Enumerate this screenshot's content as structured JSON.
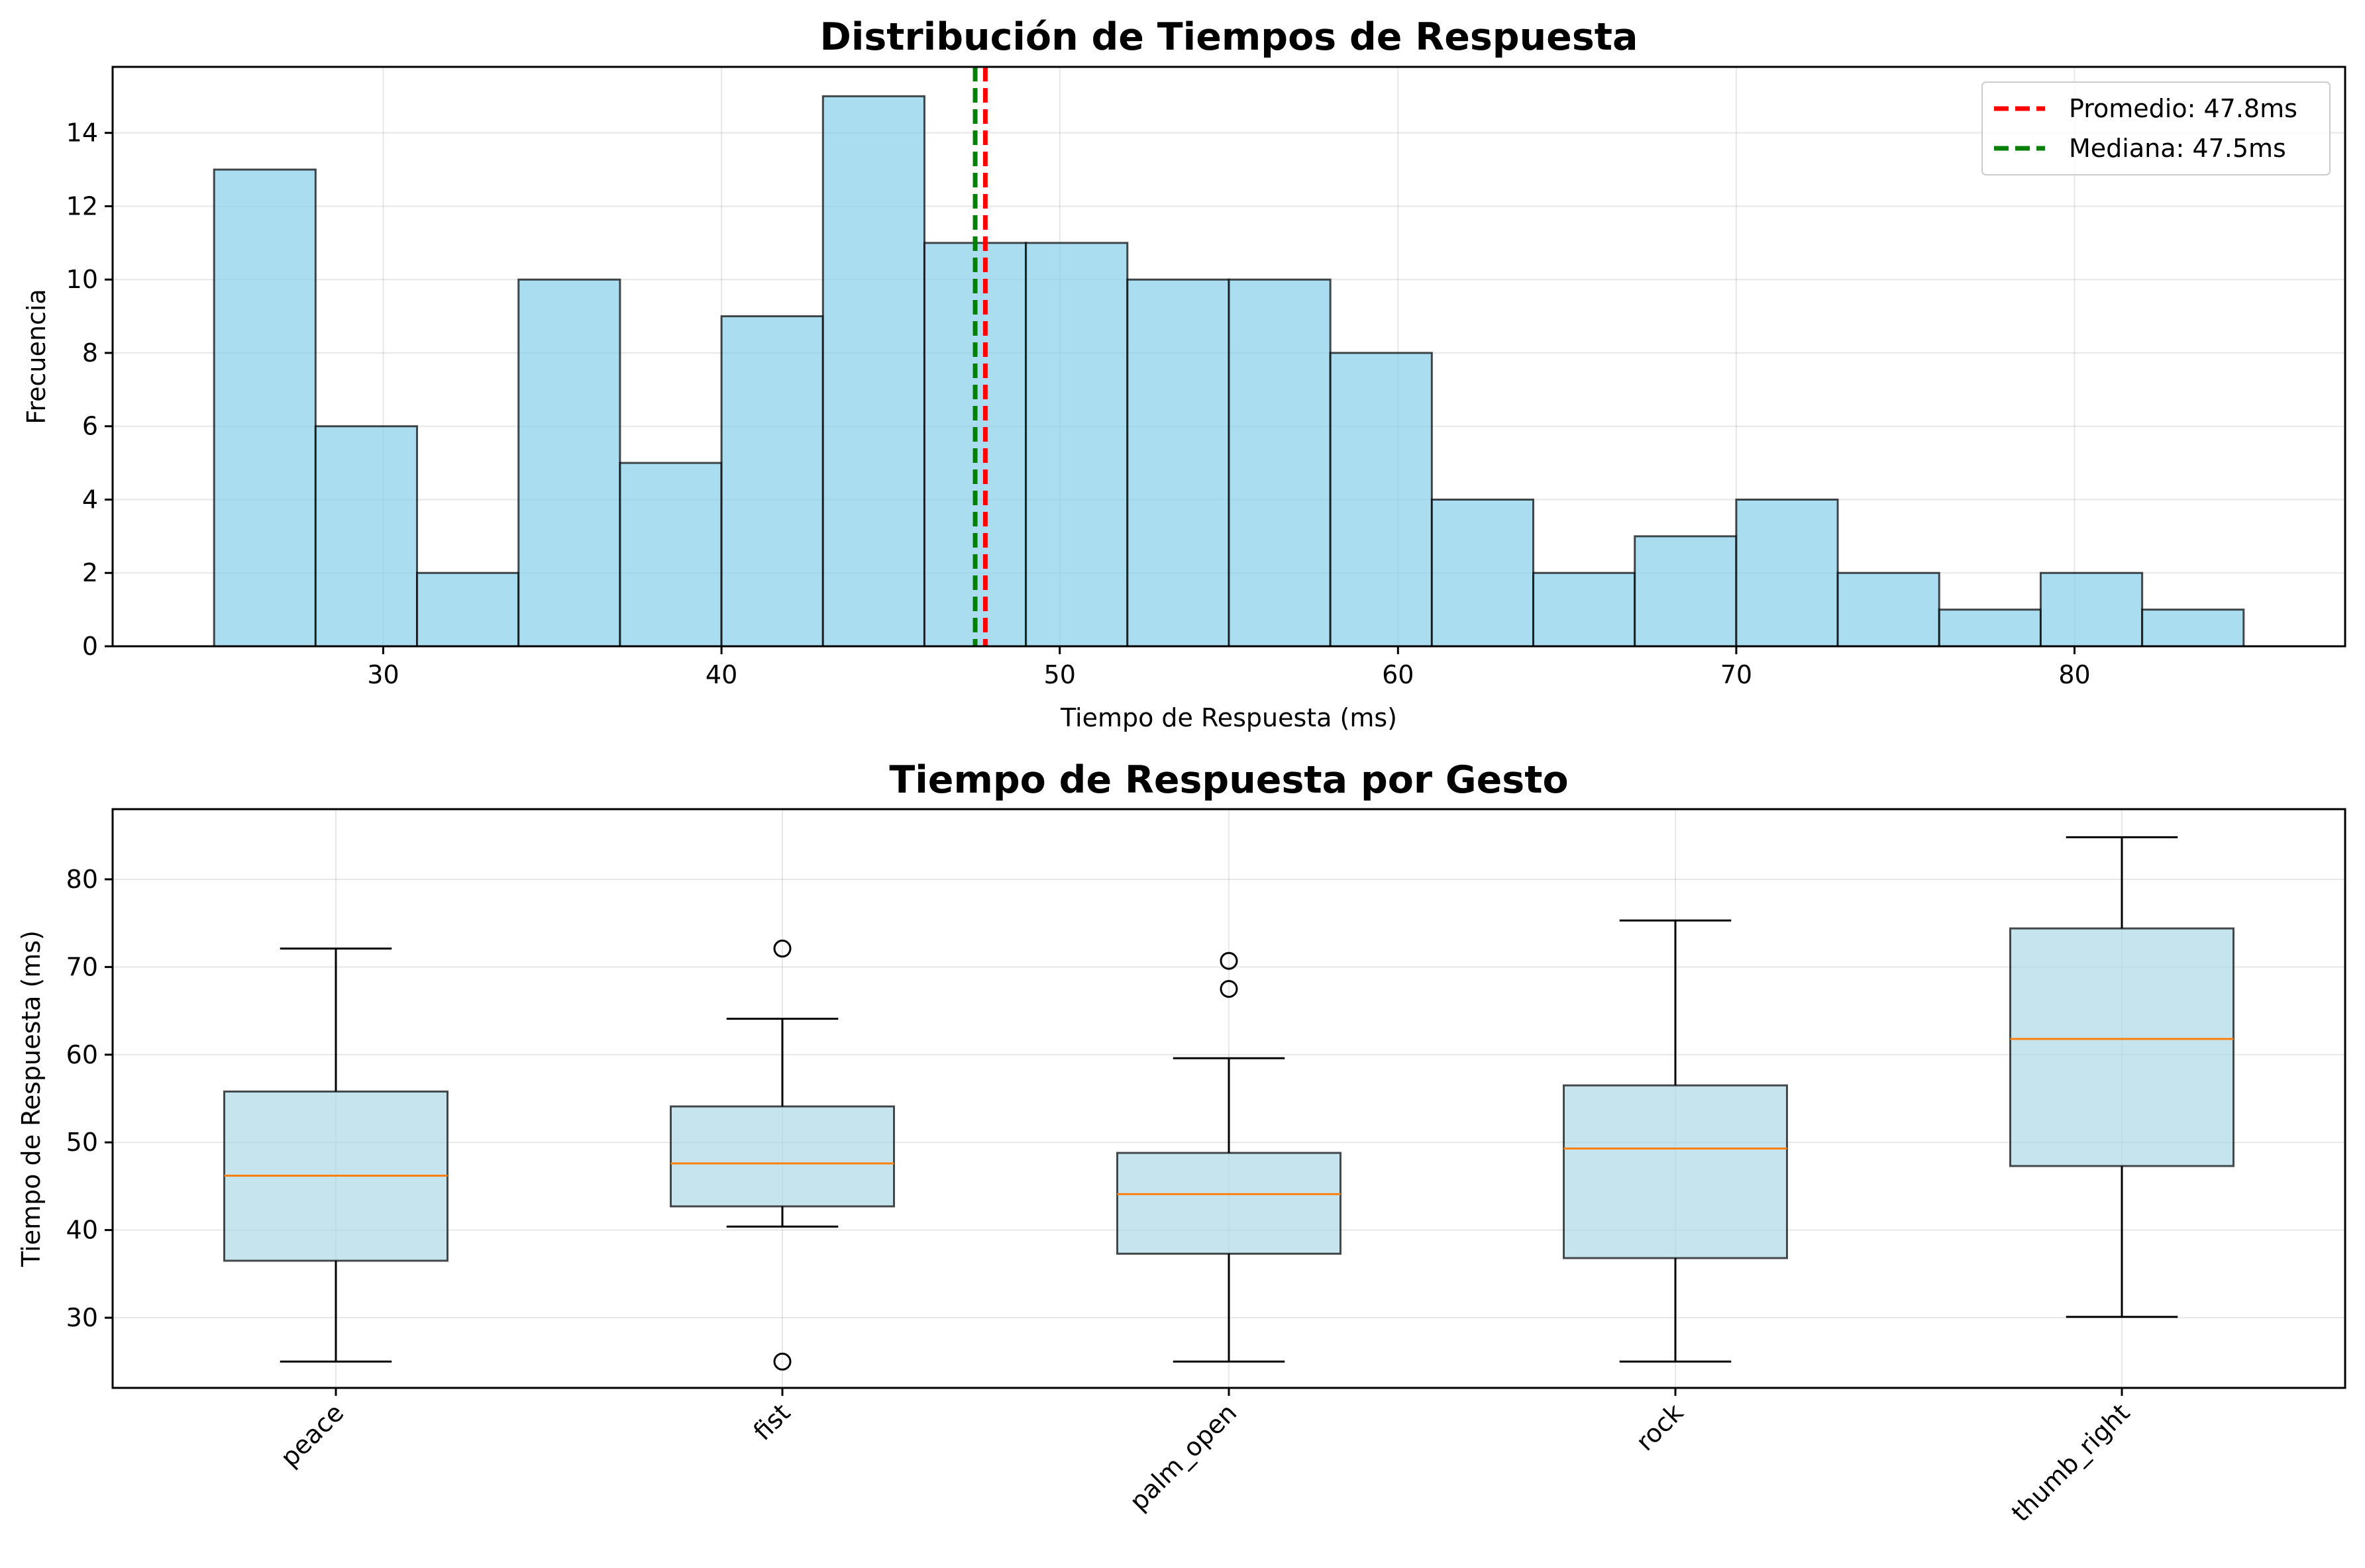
{
  "chart_data": [
    {
      "type": "bar",
      "subtype": "histogram",
      "title": "Distribución de Tiempos de Respuesta",
      "xlabel": "Tiempo de Respuesta (ms)",
      "ylabel": "Frecuencia",
      "xlim": [
        22,
        88
      ],
      "ylim": [
        0,
        15.8
      ],
      "xticks": [
        30,
        40,
        50,
        60,
        70,
        80
      ],
      "yticks": [
        0,
        2,
        4,
        6,
        8,
        10,
        12,
        14
      ],
      "grid": true,
      "bin_edges": [
        25,
        28,
        31,
        34,
        37,
        40,
        43,
        46,
        49,
        52,
        55,
        58,
        61,
        64,
        67,
        70,
        73,
        76,
        79,
        82,
        85
      ],
      "counts": [
        13,
        6,
        2,
        10,
        5,
        9,
        15,
        11,
        11,
        10,
        10,
        8,
        4,
        2,
        3,
        4,
        2,
        1,
        2,
        1
      ],
      "bar_color": "#87ceeb",
      "edge_color": "#000000",
      "reference_lines": [
        {
          "name": "Promedio: 47.8ms",
          "value": 47.8,
          "color": "#ff0000"
        },
        {
          "name": "Mediana: 47.5ms",
          "value": 47.5,
          "color": "#008000"
        }
      ],
      "legend_placement": "top-right"
    },
    {
      "type": "box",
      "title": "Tiempo de Respuesta por Gesto",
      "xlabel": "",
      "ylabel": "Tiempo de Respuesta (ms)",
      "ylim": [
        22,
        88
      ],
      "yticks": [
        30,
        40,
        50,
        60,
        70,
        80
      ],
      "grid": true,
      "box_color": "#add8e6",
      "median_color": "#ff7f0e",
      "categories": [
        "peace",
        "fist",
        "palm_open",
        "rock",
        "thumb_right"
      ],
      "boxes": [
        {
          "q1": 36.5,
          "median": 46.2,
          "q3": 55.8,
          "whisker_low": 25.0,
          "whisker_high": 72.1,
          "outliers": []
        },
        {
          "q1": 42.7,
          "median": 47.6,
          "q3": 54.1,
          "whisker_low": 40.4,
          "whisker_high": 64.1,
          "outliers": [
            72.1,
            25.0
          ]
        },
        {
          "q1": 37.3,
          "median": 44.1,
          "q3": 48.8,
          "whisker_low": 25.0,
          "whisker_high": 59.6,
          "outliers": [
            70.7,
            67.5
          ]
        },
        {
          "q1": 36.8,
          "median": 49.3,
          "q3": 56.5,
          "whisker_low": 25.0,
          "whisker_high": 75.3,
          "outliers": []
        },
        {
          "q1": 47.3,
          "median": 61.8,
          "q3": 74.4,
          "whisker_low": 30.1,
          "whisker_high": 84.8,
          "outliers": []
        }
      ]
    }
  ]
}
